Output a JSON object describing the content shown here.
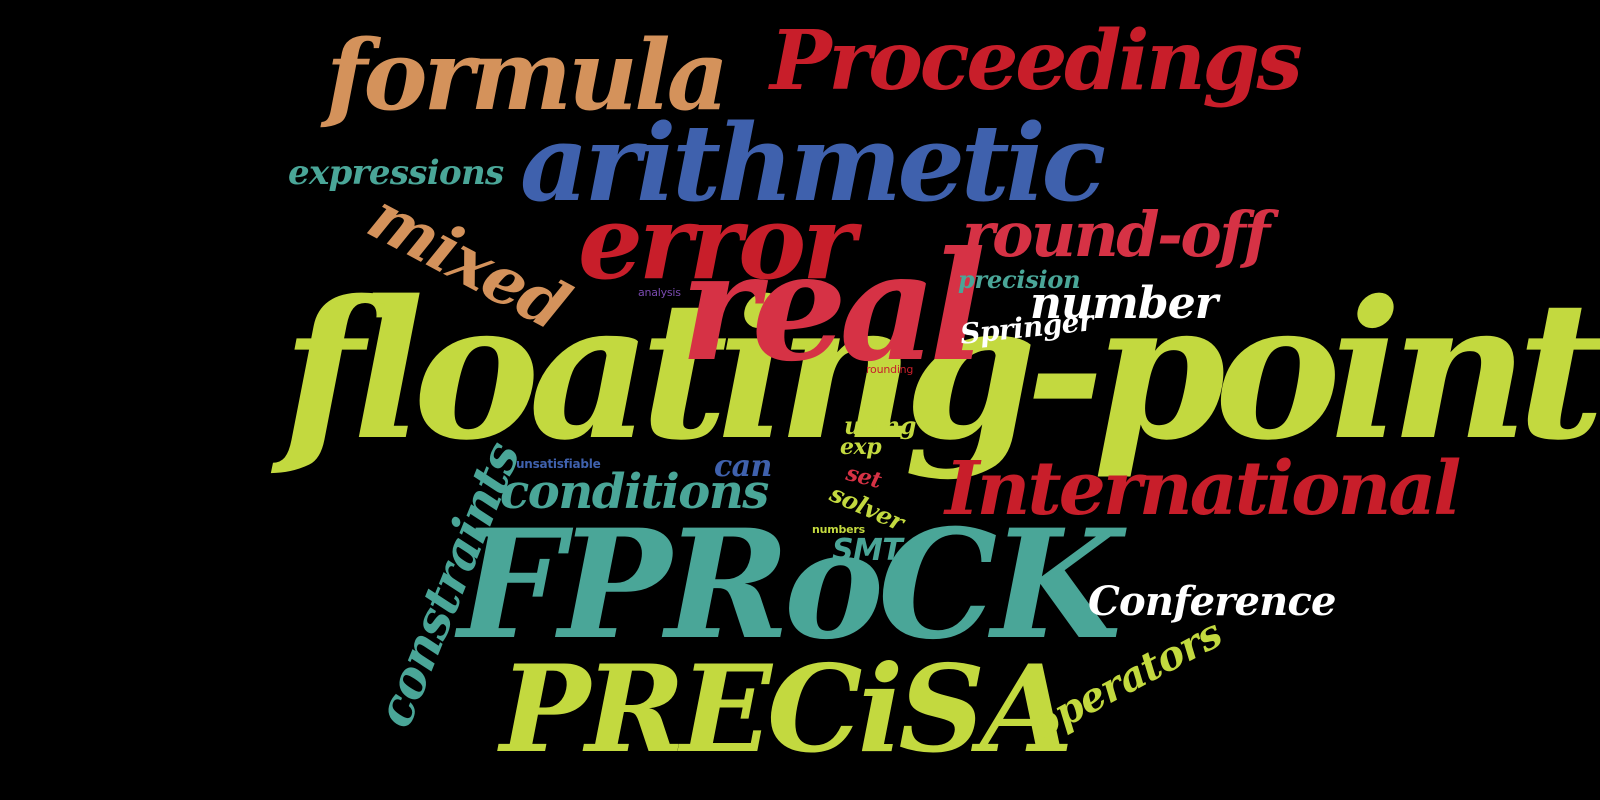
{
  "words": {
    "floating_point": "floating-point",
    "fprock": "FPRoCK",
    "precisa": "PRECiSA",
    "real": "real",
    "arithmetic": "arithmetic",
    "error": "error",
    "formula": "formula",
    "proceedings": "Proceedings",
    "international": "International",
    "round_off": "round-off",
    "mixed": "mixed",
    "constraints": "constraints",
    "conditions": "conditions",
    "conference": "Conference",
    "number": "number",
    "operators": "operators",
    "expressions": "expressions",
    "springer": "Springer",
    "precision": "precision",
    "can": "can",
    "smt": "SMT",
    "solver": "solver",
    "using": "using",
    "exp": "exp",
    "set": "set",
    "numbers": "numbers",
    "unsatisfiable": "unsatisfiable",
    "analysis": "analysis",
    "rounding": "rounding"
  },
  "colors": {
    "background": "#000000",
    "lime": "#c3d93f",
    "teal": "#4aa698",
    "crimson": "#c81e2a",
    "rose": "#d63245",
    "blue": "#3f61ad",
    "tan": "#d4925b",
    "white": "#ffffff",
    "purple": "#7a4ab0"
  }
}
